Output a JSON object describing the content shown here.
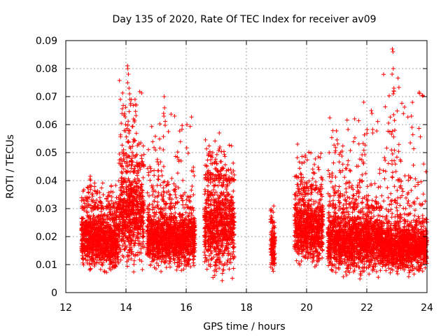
{
  "chart_data": {
    "type": "scatter",
    "title": "Day 135 of 2020, Rate Of TEC Index for receiver av09",
    "xlabel": "GPS time / hours",
    "ylabel": "ROTI / TECUs",
    "xlim": [
      12,
      24
    ],
    "ylim": [
      0,
      0.09
    ],
    "x_ticks": [
      "12",
      "14",
      "16",
      "18",
      "20",
      "22",
      "24"
    ],
    "y_ticks": [
      "0",
      "0.01",
      "0.02",
      "0.03",
      "0.04",
      "0.05",
      "0.06",
      "0.07",
      "0.08",
      "0.09"
    ],
    "grid": true,
    "marker": "+",
    "color": "#ff0000",
    "series": [
      {
        "name": "ROTI",
        "segments": [
          {
            "x": [
              12.52,
              13.0
            ],
            "typical_y": [
              0.006,
              0.03
            ],
            "max_y": 0.045
          },
          {
            "x": [
              13.0,
              13.75
            ],
            "typical_y": [
              0.005,
              0.03
            ],
            "max_y": 0.04
          },
          {
            "x": [
              13.75,
              14.6
            ],
            "typical_y": [
              0.006,
              0.045
            ],
            "max_y": 0.081
          },
          {
            "x": [
              14.7,
              16.3
            ],
            "typical_y": [
              0.006,
              0.03
            ],
            "max_y": 0.07
          },
          {
            "x": [
              16.6,
              17.6
            ],
            "typical_y": [
              0.003,
              0.04
            ],
            "max_y": 0.057
          },
          {
            "x": [
              18.8,
              18.95
            ],
            "typical_y": [
              0.006,
              0.025
            ],
            "max_y": 0.033
          },
          {
            "x": [
              19.6,
              20.55
            ],
            "typical_y": [
              0.007,
              0.035
            ],
            "max_y": 0.053
          },
          {
            "x": [
              20.7,
              22.5
            ],
            "typical_y": [
              0.004,
              0.03
            ],
            "max_y": 0.068
          },
          {
            "x": [
              22.5,
              24.0
            ],
            "typical_y": [
              0.005,
              0.025
            ],
            "max_y": 0.087
          }
        ],
        "spikes": [
          {
            "x": 14.05,
            "y": 0.081
          },
          {
            "x": 14.06,
            "y": 0.08
          },
          {
            "x": 14.08,
            "y": 0.078
          },
          {
            "x": 14.1,
            "y": 0.073
          },
          {
            "x": 14.12,
            "y": 0.071
          },
          {
            "x": 14.13,
            "y": 0.069
          },
          {
            "x": 14.15,
            "y": 0.067
          },
          {
            "x": 14.3,
            "y": 0.069
          },
          {
            "x": 14.35,
            "y": 0.067
          },
          {
            "x": 14.25,
            "y": 0.062
          },
          {
            "x": 14.28,
            "y": 0.061
          },
          {
            "x": 14.1,
            "y": 0.057
          },
          {
            "x": 15.27,
            "y": 0.07
          },
          {
            "x": 15.28,
            "y": 0.066
          },
          {
            "x": 15.25,
            "y": 0.064
          },
          {
            "x": 15.26,
            "y": 0.063
          },
          {
            "x": 15.24,
            "y": 0.051
          },
          {
            "x": 17.1,
            "y": 0.057
          },
          {
            "x": 17.12,
            "y": 0.052
          },
          {
            "x": 19.7,
            "y": 0.053
          },
          {
            "x": 21.9,
            "y": 0.068
          },
          {
            "x": 22.15,
            "y": 0.065
          },
          {
            "x": 22.17,
            "y": 0.064
          },
          {
            "x": 22.2,
            "y": 0.057
          },
          {
            "x": 22.85,
            "y": 0.087
          },
          {
            "x": 22.87,
            "y": 0.086
          },
          {
            "x": 22.88,
            "y": 0.08
          },
          {
            "x": 22.84,
            "y": 0.078
          },
          {
            "x": 22.9,
            "y": 0.073
          },
          {
            "x": 22.9,
            "y": 0.072
          },
          {
            "x": 22.88,
            "y": 0.071
          },
          {
            "x": 22.93,
            "y": 0.058
          }
        ]
      }
    ]
  }
}
